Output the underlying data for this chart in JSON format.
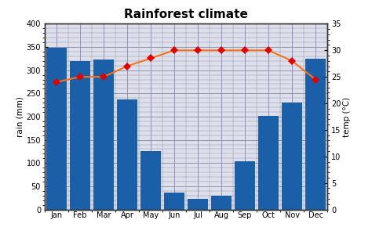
{
  "title": "Rainforest climate",
  "months": [
    "Jan",
    "Feb",
    "Mar",
    "Apr",
    "May",
    "Jun",
    "Jul",
    "Aug",
    "Sep",
    "Oct",
    "Nov",
    "Dec"
  ],
  "rain_mm": [
    348,
    320,
    323,
    237,
    125,
    37,
    22,
    30,
    103,
    202,
    230,
    325
  ],
  "temp_c": [
    24,
    25,
    25,
    27,
    28.5,
    30,
    30,
    30,
    30,
    30,
    28,
    24.5
  ],
  "bar_color": "#1a5fa8",
  "line_color": "#f97316",
  "marker_color": "#e00000",
  "rain_ylim": [
    0,
    400
  ],
  "temp_ylim": [
    0,
    35
  ],
  "rain_yticks": [
    0,
    50,
    100,
    150,
    200,
    250,
    300,
    350,
    400
  ],
  "temp_yticks": [
    0,
    5,
    10,
    15,
    20,
    25,
    30,
    35
  ],
  "ylabel_left": "rain (mm)",
  "ylabel_right": "temp (°C)",
  "background_color": "#dde0ea",
  "grid_color": "#8888aa",
  "title_fontsize": 11,
  "tick_fontsize": 7,
  "label_fontsize": 7.5
}
